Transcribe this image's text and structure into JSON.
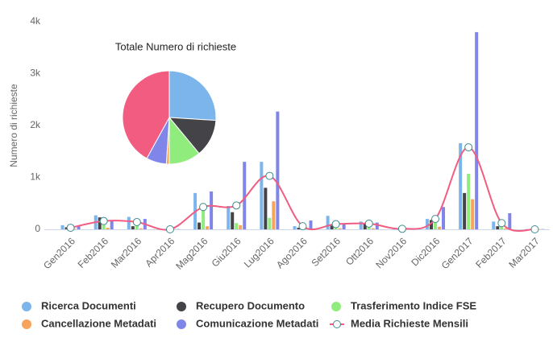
{
  "chart_data": [
    {
      "type": "bar",
      "y_label": "Numero di richieste",
      "categories": [
        "Gen2016",
        "Feb2016",
        "Mar2016",
        "Apr2016",
        "Mag2016",
        "Giu2016",
        "Lug2016",
        "Ago2016",
        "Set2016",
        "Ott2016",
        "Nov2016",
        "Dic2016",
        "Gen2017",
        "Feb2017",
        "Mar2017"
      ],
      "ylim": [
        0,
        4000
      ],
      "yticks": [
        0,
        {
          "value": 1000,
          "label": "1k"
        },
        {
          "value": 2000,
          "label": "2k"
        },
        {
          "value": 3000,
          "label": "3k"
        },
        {
          "value": 4000,
          "label": "4k"
        }
      ],
      "grid": false,
      "legend": "bottom",
      "series": [
        {
          "name": "Ricerca Documenti",
          "color": "#7cb5ec",
          "values": [
            80,
            270,
            240,
            5,
            700,
            450,
            1300,
            60,
            260,
            150,
            10,
            200,
            1660,
            150,
            5
          ]
        },
        {
          "name": "Recupero Documento",
          "color": "#434348",
          "values": [
            40,
            230,
            60,
            5,
            130,
            330,
            800,
            30,
            70,
            110,
            10,
            180,
            700,
            60,
            5
          ]
        },
        {
          "name": "Trasferimento Indice FSE",
          "color": "#90ed7d",
          "values": [
            20,
            80,
            100,
            5,
            450,
            120,
            220,
            20,
            30,
            50,
            10,
            130,
            1070,
            50,
            5
          ]
        },
        {
          "name": "Cancellazione Metadati",
          "color": "#f7a35c",
          "values": [
            10,
            30,
            20,
            5,
            60,
            80,
            540,
            10,
            20,
            20,
            10,
            50,
            580,
            20,
            5
          ]
        },
        {
          "name": "Comunicazione Metadati",
          "color": "#8085e9",
          "values": [
            60,
            170,
            200,
            5,
            730,
            1300,
            2270,
            170,
            100,
            130,
            10,
            430,
            3800,
            310,
            5
          ]
        },
        {
          "name": "Media Richieste Mensili",
          "type": "line",
          "color": "#f15c80",
          "marker_color": "#3d8c8c",
          "values": [
            30,
            160,
            140,
            0,
            430,
            460,
            1030,
            60,
            100,
            110,
            10,
            200,
            1580,
            120,
            0
          ]
        }
      ]
    },
    {
      "type": "pie",
      "title": "Totale Numero di richieste",
      "colors": [
        "#7cb5ec",
        "#434348",
        "#90ed7d",
        "#f7a35c",
        "#8085e9",
        "#f15c80"
      ],
      "values": [
        26,
        13,
        11,
        1,
        7,
        42
      ]
    }
  ]
}
